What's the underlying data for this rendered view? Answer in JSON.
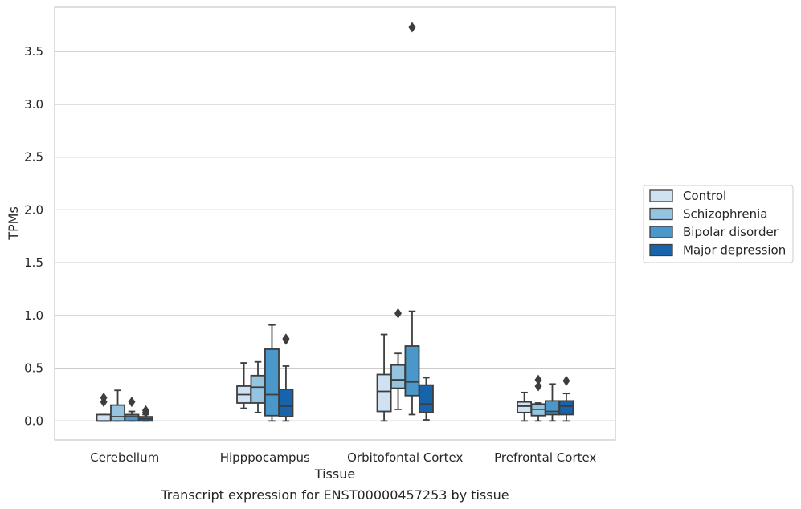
{
  "chart_data": {
    "type": "box",
    "title": "",
    "caption": "Transcript expression for ENST00000457253 by tissue",
    "xlabel": "Tissue",
    "ylabel": "TPMs",
    "ylim": [
      -0.18,
      3.92
    ],
    "yticks": [
      0.0,
      0.5,
      1.0,
      1.5,
      2.0,
      2.5,
      3.0,
      3.5
    ],
    "ytick_labels": [
      "0.0",
      "0.5",
      "1.0",
      "1.5",
      "2.0",
      "2.5",
      "3.0",
      "3.5"
    ],
    "grid": "horizontal",
    "legend_position": "right",
    "categories": [
      "Cerebellum",
      "Hipppocampus",
      "Orbitofontal Cortex",
      "Prefrontal Cortex"
    ],
    "series": [
      {
        "name": "Control",
        "color": "#d0e1f2",
        "boxes": [
          {
            "whislo": 0.0,
            "q1": 0.0,
            "med": 0.0,
            "q3": 0.06,
            "whishi": 0.06,
            "fliers": [
              0.18,
              0.22
            ]
          },
          {
            "whislo": 0.12,
            "q1": 0.17,
            "med": 0.25,
            "q3": 0.33,
            "whishi": 0.55,
            "fliers": []
          },
          {
            "whislo": 0.0,
            "q1": 0.09,
            "med": 0.28,
            "q3": 0.44,
            "whishi": 0.82,
            "fliers": []
          },
          {
            "whislo": 0.0,
            "q1": 0.08,
            "med": 0.14,
            "q3": 0.18,
            "whishi": 0.27,
            "fliers": []
          }
        ]
      },
      {
        "name": "Schizophrenia",
        "color": "#94c4df",
        "boxes": [
          {
            "whislo": 0.0,
            "q1": 0.0,
            "med": 0.04,
            "q3": 0.15,
            "whishi": 0.29,
            "fliers": []
          },
          {
            "whislo": 0.08,
            "q1": 0.17,
            "med": 0.32,
            "q3": 0.43,
            "whishi": 0.56,
            "fliers": []
          },
          {
            "whislo": 0.11,
            "q1": 0.31,
            "med": 0.39,
            "q3": 0.53,
            "whishi": 0.64,
            "fliers": [
              1.02
            ]
          },
          {
            "whislo": 0.0,
            "q1": 0.05,
            "med": 0.11,
            "q3": 0.16,
            "whishi": 0.17,
            "fliers": [
              0.33,
              0.39
            ]
          }
        ]
      },
      {
        "name": "Bipolar disorder",
        "color": "#4a98c9",
        "boxes": [
          {
            "whislo": 0.0,
            "q1": 0.0,
            "med": 0.04,
            "q3": 0.06,
            "whishi": 0.09,
            "fliers": [
              0.18
            ]
          },
          {
            "whislo": 0.0,
            "q1": 0.05,
            "med": 0.25,
            "q3": 0.68,
            "whishi": 0.91,
            "fliers": []
          },
          {
            "whislo": 0.06,
            "q1": 0.24,
            "med": 0.37,
            "q3": 0.71,
            "whishi": 1.04,
            "fliers": [
              3.73
            ]
          },
          {
            "whislo": 0.0,
            "q1": 0.06,
            "med": 0.09,
            "q3": 0.19,
            "whishi": 0.35,
            "fliers": []
          }
        ]
      },
      {
        "name": "Major depression",
        "color": "#1764ab",
        "boxes": [
          {
            "whislo": 0.0,
            "q1": 0.0,
            "med": 0.02,
            "q3": 0.04,
            "whishi": 0.06,
            "fliers": [
              0.08,
              0.1
            ]
          },
          {
            "whislo": 0.0,
            "q1": 0.04,
            "med": 0.14,
            "q3": 0.3,
            "whishi": 0.52,
            "fliers": [
              0.77,
              0.78
            ]
          },
          {
            "whislo": 0.01,
            "q1": 0.08,
            "med": 0.16,
            "q3": 0.34,
            "whishi": 0.41,
            "fliers": []
          },
          {
            "whislo": 0.0,
            "q1": 0.06,
            "med": 0.14,
            "q3": 0.19,
            "whishi": 0.26,
            "fliers": [
              0.38
            ]
          }
        ]
      }
    ]
  }
}
